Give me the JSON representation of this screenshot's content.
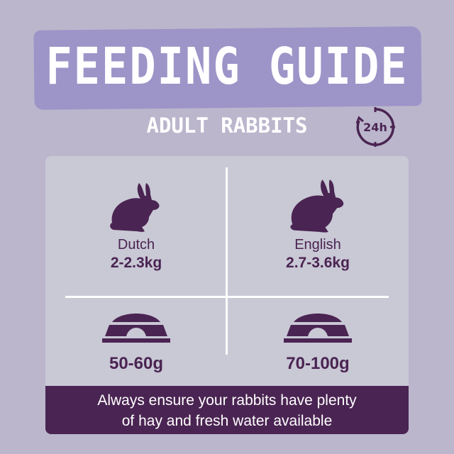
{
  "header": {
    "title": "FEEDING GUIDE",
    "subtitle": "ADULT RABBITS",
    "clock_label": "24h",
    "clock_icon": "24-hour-clock-icon"
  },
  "breeds": [
    {
      "name": "Dutch",
      "weight": "2-2.3kg",
      "amount": "50-60g",
      "icon": "rabbit-icon"
    },
    {
      "name": "English",
      "weight": "2.7-3.6kg",
      "amount": "70-100g",
      "icon": "rabbit-icon"
    }
  ],
  "footer": {
    "line1": "Always ensure your rabbits have plenty",
    "line2": "of hay and fresh water available"
  },
  "colors": {
    "background": "#bbb6cc",
    "banner": "#9d94c8",
    "card": "#c9c8d5",
    "accent": "#4a2452"
  }
}
